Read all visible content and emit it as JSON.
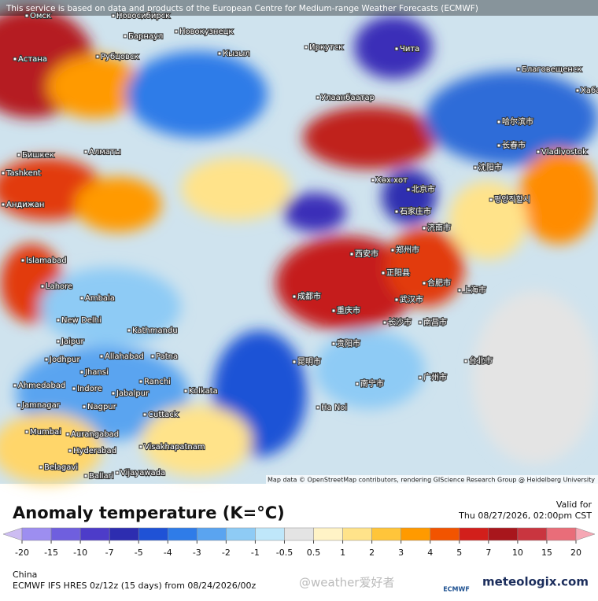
{
  "notice": "This service is based on data and products of the European Centre for Medium-range Weather Forecasts (ECMWF)",
  "attribution": "Map data © OpenStreetMap contributors, rendering GIScience Research Group @ Heidelberg University",
  "cities": [
    "Омск",
    "Новосибирск",
    "Барнаул",
    "Новокузнецк",
    "Астана",
    "Рубцовск",
    "Кызыл",
    "Иркутск",
    "Чита",
    "Благовещенск",
    "Улаанбаатар",
    "Хабаро",
    "哈尔滨市",
    "长春市",
    "Vladivostok",
    "Бишкек",
    "Алматы",
    "沈阳市",
    "Хөх хот",
    "北京市",
    "평양직할시",
    "石家庄市",
    "济南市",
    "Islamabad",
    "Lahore",
    "西安市",
    "郑州市",
    "正阳县",
    "合肥市",
    "上海市",
    "Ambala",
    "成都市",
    "重庆市",
    "武汉市",
    "New Delhi",
    "Kathmandu",
    "长沙市",
    "南昌市",
    "Jaipur",
    "贵阳市",
    "Allahabad",
    "Patna",
    "昆明市",
    "台北市",
    "Jodhpur",
    "Jhansi",
    "Ranchi",
    "Ahmedabad",
    "Indore",
    "Jabalpur",
    "Kolkata",
    "南宁市",
    "广州市",
    "Jamnagar",
    "Nagpur",
    "Cuttack",
    "Ha Noi",
    "Mumbai",
    "Aurangabad",
    "Hyderabad",
    "Visakhapatnam",
    "Belagavi",
    "Ballari",
    "Vijayawada",
    "Tashkent",
    "Андижан"
  ],
  "title": "Anomaly temperature (K=°C)",
  "valid_label": "Valid for",
  "valid_time": "Thu 08/27/2026, 02:00pm CST",
  "colorbar": {
    "ticks": [
      -20,
      -15,
      -10,
      -7,
      -5,
      -4,
      -3,
      -2,
      -1,
      -0.5,
      0.5,
      1,
      2,
      3,
      4,
      5,
      7,
      10,
      15,
      20
    ],
    "colors": [
      "#cdbdf2",
      "#9d8ef0",
      "#6f5fde",
      "#4d3cc9",
      "#2d2db0",
      "#1f52d6",
      "#2f7ce8",
      "#5aa4f0",
      "#8ecbf5",
      "#bfe7fa",
      "#e4e4e4",
      "#fff3c6",
      "#ffe38a",
      "#ffc53a",
      "#ff9a00",
      "#f25400",
      "#d21f1b",
      "#a8161c",
      "#c9353f",
      "#e96d79",
      "#f6a7b4"
    ]
  },
  "footer": {
    "region": "China",
    "model": "ECMWF IFS HRES 0z/12z (15 days) from 08/24/2026/00z",
    "watermark": "@weather爱好者",
    "ecmwf": "ECMWF",
    "brand": "meteologix.com"
  }
}
